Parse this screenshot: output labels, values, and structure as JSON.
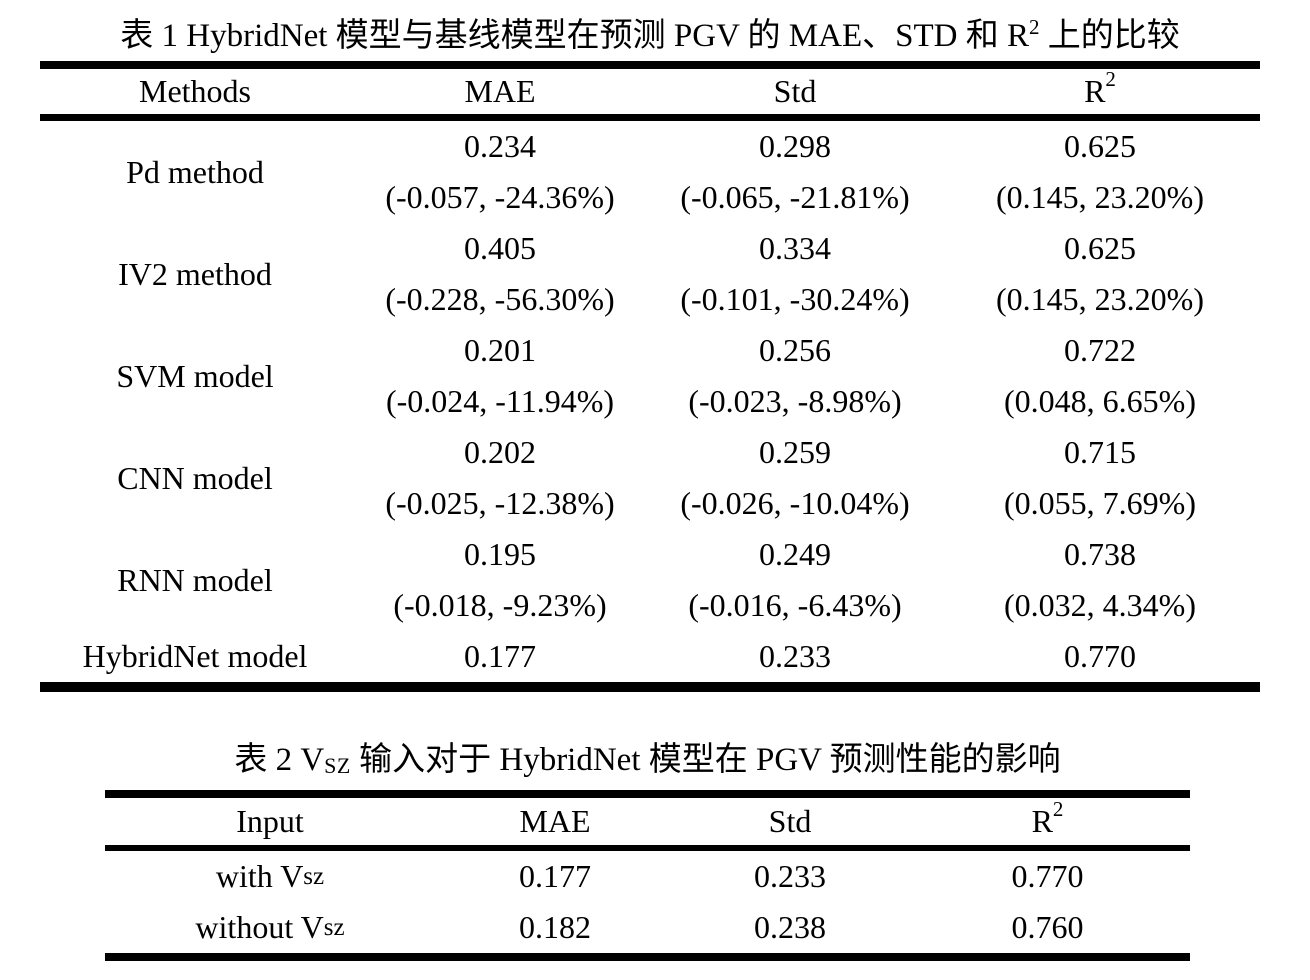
{
  "table1": {
    "title": {
      "part1": "表 1 HybridNet 模型与基线模型在预测 PGV 的 MAE、STD 和 R",
      "sup": "2",
      "part2": " 上的比较"
    },
    "headers": {
      "col1": "Methods",
      "col2": "MAE",
      "col3": "Std",
      "col4_base": "R",
      "col4_sup": "2"
    },
    "rows": [
      {
        "method": "Pd method",
        "mae": "0.234",
        "mae_delta": "(-0.057, -24.36%)",
        "std": "0.298",
        "std_delta": "(-0.065, -21.81%)",
        "r2": "0.625",
        "r2_delta": "(0.145, 23.20%)"
      },
      {
        "method": "IV2 method",
        "mae": "0.405",
        "mae_delta": "(-0.228, -56.30%)",
        "std": "0.334",
        "std_delta": "(-0.101, -30.24%)",
        "r2": "0.625",
        "r2_delta": "(0.145, 23.20%)"
      },
      {
        "method": "SVM model",
        "mae": "0.201",
        "mae_delta": "(-0.024, -11.94%)",
        "std": "0.256",
        "std_delta": "(-0.023, -8.98%)",
        "r2": "0.722",
        "r2_delta": "(0.048, 6.65%)"
      },
      {
        "method": "CNN model",
        "mae": "0.202",
        "mae_delta": "(-0.025, -12.38%)",
        "std": "0.259",
        "std_delta": "(-0.026, -10.04%)",
        "r2": "0.715",
        "r2_delta": "(0.055, 7.69%)"
      },
      {
        "method": "RNN model",
        "mae": "0.195",
        "mae_delta": "(-0.018, -9.23%)",
        "std": "0.249",
        "std_delta": "(-0.016, -6.43%)",
        "r2": "0.738",
        "r2_delta": "(0.032, 4.34%)"
      }
    ],
    "final_row": {
      "method": "HybridNet model",
      "mae": "0.177",
      "std": "0.233",
      "r2": "0.770"
    }
  },
  "table2": {
    "title": {
      "part1": "表 2 V",
      "sub": "SZ",
      "part2": " 输入对于 HybridNet 模型在 PGV 预测性能的影响"
    },
    "headers": {
      "col1": "Input",
      "col2": "MAE",
      "col3": "Std",
      "col4_base": "R",
      "col4_sup": "2"
    },
    "rows": [
      {
        "input_base": "with V",
        "input_sub": "sz",
        "mae": "0.177",
        "std": "0.233",
        "r2": "0.770"
      },
      {
        "input_base": "without V",
        "input_sub": "sz",
        "mae": "0.182",
        "std": "0.238",
        "r2": "0.760"
      }
    ]
  }
}
